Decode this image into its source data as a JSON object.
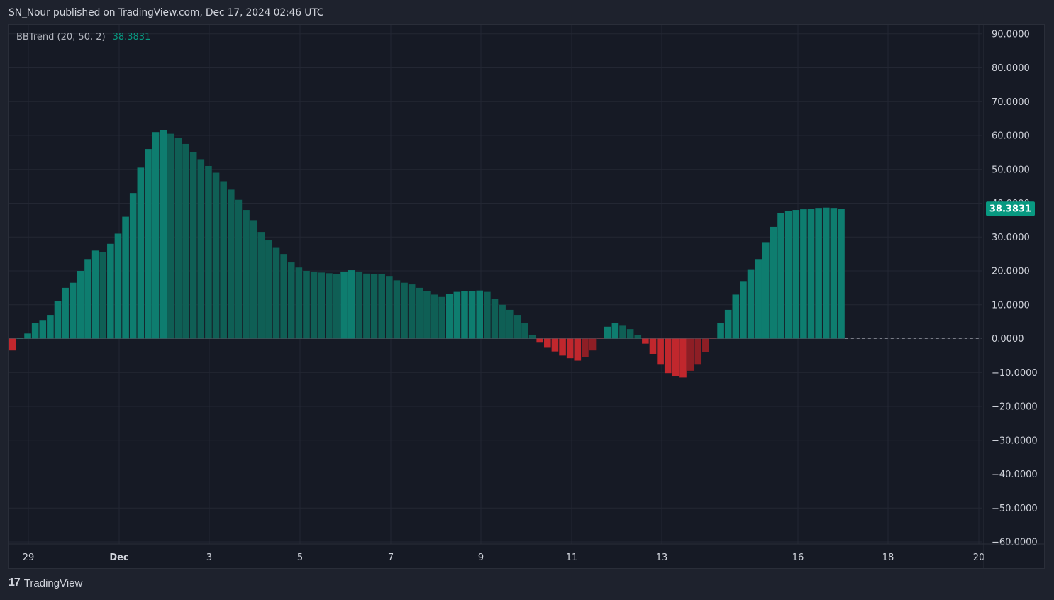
{
  "header": {
    "published": "SN_Nour published on TradingView.com, Dec 17, 2024 02:46 UTC"
  },
  "legend": {
    "label": "BBTrend (20, 50, 2)",
    "value": "38.3831"
  },
  "footer": {
    "brand": "TradingView"
  },
  "colors": {
    "background": "#161a25",
    "grid": "#232733",
    "positive_strong": "#0e7d6f",
    "positive_weak": "#0f5f55",
    "negative_strong": "#c1272d",
    "negative_weak": "#8e1e25",
    "last_value_badge": "#089981",
    "axis_text": "#d1d4dc"
  },
  "chart_data": {
    "type": "bar",
    "title": "BBTrend (20, 50, 2)",
    "last_value": 38.3831,
    "ylim": [
      -60,
      90
    ],
    "y_ticks": [
      "90.0000",
      "80.0000",
      "70.0000",
      "60.0000",
      "50.0000",
      "40.0000",
      "30.0000",
      "20.0000",
      "10.0000",
      "0.0000",
      "−10.0000",
      "−20.0000",
      "−30.0000",
      "−40.0000",
      "−50.0000",
      "−60.0000"
    ],
    "x_tick_labels": [
      "29",
      "Dec",
      "3",
      "5",
      "7",
      "9",
      "11",
      "13",
      "16",
      "18",
      "20"
    ],
    "grid": true,
    "values": [
      -3.5,
      0,
      1.5,
      4.5,
      5.5,
      7,
      11,
      15,
      16.5,
      20,
      23.5,
      26,
      25.5,
      28,
      31,
      36,
      43,
      50.5,
      56,
      61,
      61.5,
      60.5,
      59.2,
      57.5,
      55,
      53,
      51,
      49,
      46.5,
      44,
      41,
      38,
      35,
      31.5,
      29,
      27,
      25,
      22.5,
      21,
      20,
      19.8,
      19.5,
      19.3,
      19,
      19.8,
      20.2,
      19.8,
      19.2,
      19,
      19,
      18.5,
      17.2,
      16.5,
      16,
      15,
      14,
      13,
      12.3,
      13.3,
      13.8,
      14,
      14,
      14.2,
      13.8,
      11.8,
      10,
      8.5,
      7,
      4.5,
      1,
      -1,
      -2.5,
      -3.8,
      -5,
      -5.8,
      -6.5,
      -5.5,
      -3.5,
      0,
      3.5,
      4.5,
      4,
      2.8,
      1,
      -1.5,
      -4.5,
      -7.5,
      -10.2,
      -11,
      -11.5,
      -9.5,
      -7.5,
      -4,
      0,
      4.5,
      8.5,
      13,
      17,
      20.5,
      23.5,
      28.5,
      33,
      37,
      37.8,
      38,
      38.2,
      38.4,
      38.6,
      38.7,
      38.6,
      38.38
    ],
    "bar_colors": [
      "negative_strong",
      "positive_strong",
      "positive_strong",
      "positive_strong",
      "positive_strong",
      "positive_strong",
      "positive_strong",
      "positive_strong",
      "positive_strong",
      "positive_strong",
      "positive_strong",
      "positive_strong",
      "positive_weak",
      "positive_strong",
      "positive_strong",
      "positive_strong",
      "positive_strong",
      "positive_strong",
      "positive_strong",
      "positive_strong",
      "positive_strong",
      "positive_weak",
      "positive_weak",
      "positive_weak",
      "positive_weak",
      "positive_weak",
      "positive_weak",
      "positive_weak",
      "positive_weak",
      "positive_weak",
      "positive_weak",
      "positive_weak",
      "positive_weak",
      "positive_weak",
      "positive_weak",
      "positive_weak",
      "positive_weak",
      "positive_weak",
      "positive_weak",
      "positive_weak",
      "positive_weak",
      "positive_weak",
      "positive_weak",
      "positive_weak",
      "positive_strong",
      "positive_strong",
      "positive_weak",
      "positive_weak",
      "positive_weak",
      "positive_weak",
      "positive_weak",
      "positive_weak",
      "positive_weak",
      "positive_weak",
      "positive_weak",
      "positive_weak",
      "positive_weak",
      "positive_weak",
      "positive_strong",
      "positive_strong",
      "positive_strong",
      "positive_strong",
      "positive_strong",
      "positive_weak",
      "positive_weak",
      "positive_weak",
      "positive_weak",
      "positive_weak",
      "positive_weak",
      "positive_weak",
      "negative_strong",
      "negative_strong",
      "negative_strong",
      "negative_strong",
      "negative_strong",
      "negative_strong",
      "negative_weak",
      "negative_weak",
      "negative_weak",
      "positive_strong",
      "positive_strong",
      "positive_weak",
      "positive_weak",
      "positive_weak",
      "negative_strong",
      "negative_strong",
      "negative_strong",
      "negative_strong",
      "negative_strong",
      "negative_strong",
      "negative_weak",
      "negative_weak",
      "negative_weak",
      "negative_weak",
      "positive_strong",
      "positive_strong",
      "positive_strong",
      "positive_strong",
      "positive_strong",
      "positive_strong",
      "positive_strong",
      "positive_strong",
      "positive_strong",
      "positive_strong",
      "positive_strong",
      "positive_strong",
      "positive_strong",
      "positive_strong",
      "positive_strong",
      "positive_strong",
      "positive_strong"
    ]
  }
}
